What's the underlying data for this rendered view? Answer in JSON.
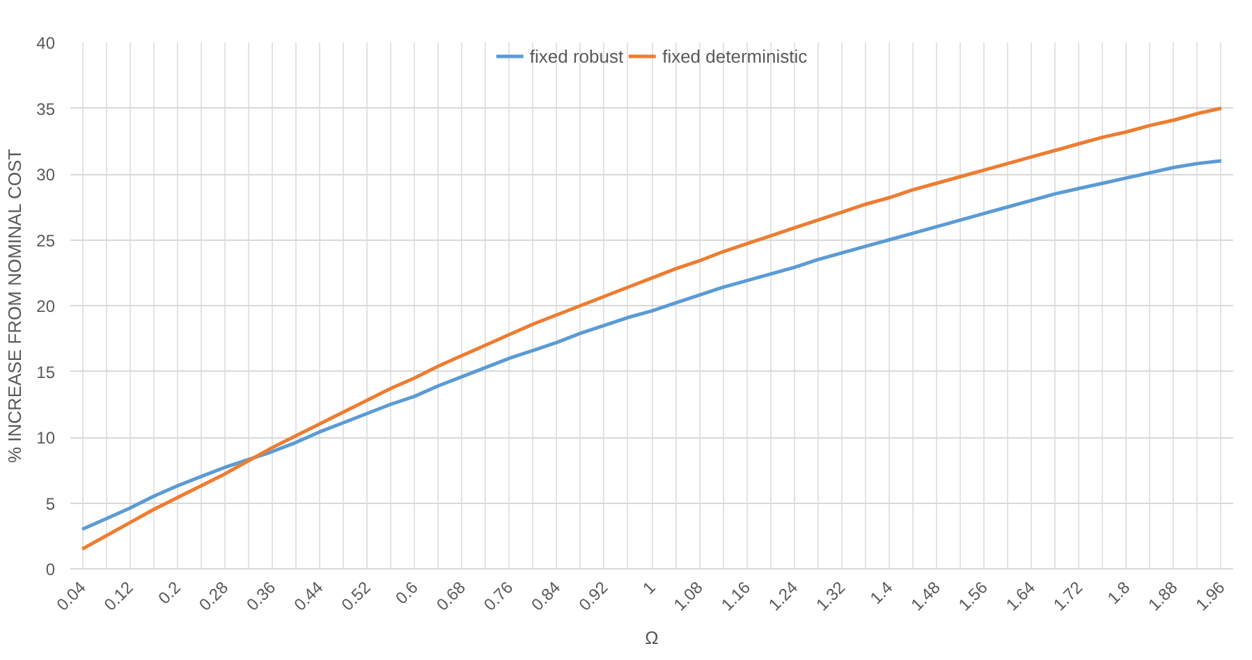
{
  "chart_data": {
    "type": "line",
    "xlabel": "Ω",
    "ylabel": "% INCREASE FROM NOMINAL COST",
    "categories": [
      "0.04",
      null,
      "0.12",
      null,
      "0.2",
      null,
      "0.28",
      null,
      "0.36",
      null,
      "0.44",
      null,
      "0.52",
      null,
      "0.6",
      null,
      "0.68",
      null,
      "0.76",
      null,
      "0.84",
      null,
      "0.92",
      null,
      "1",
      null,
      "1.08",
      null,
      "1.16",
      null,
      "1.24",
      null,
      "1.32",
      null,
      "1.4",
      null,
      "1.48",
      null,
      "1.56",
      null,
      "1.64",
      null,
      "1.72",
      null,
      "1.8",
      null,
      "1.88",
      null,
      "1.96"
    ],
    "series": [
      {
        "name": "fixed robust",
        "color": "#5b9bd5",
        "values": [
          3.0,
          3.8,
          4.6,
          5.5,
          6.3,
          7.0,
          7.7,
          8.3,
          8.9,
          9.6,
          10.4,
          11.1,
          11.8,
          12.5,
          13.1,
          13.9,
          14.6,
          15.3,
          16.0,
          16.6,
          17.2,
          17.9,
          18.5,
          19.1,
          19.6,
          20.2,
          20.8,
          21.4,
          21.9,
          22.4,
          22.9,
          23.5,
          24.0,
          24.5,
          25.0,
          25.5,
          26.0,
          26.5,
          27.0,
          27.5,
          28.0,
          28.5,
          28.9,
          29.3,
          29.7,
          30.1,
          30.5,
          30.8,
          31.0
        ]
      },
      {
        "name": "fixed deterministic",
        "color": "#ed7d31",
        "values": [
          1.5,
          2.5,
          3.5,
          4.5,
          5.4,
          6.3,
          7.2,
          8.2,
          9.2,
          10.1,
          11.0,
          11.9,
          12.8,
          13.7,
          14.5,
          15.4,
          16.2,
          17.0,
          17.8,
          18.6,
          19.3,
          20.0,
          20.7,
          21.4,
          22.1,
          22.8,
          23.4,
          24.1,
          24.7,
          25.3,
          25.9,
          26.5,
          27.1,
          27.7,
          28.2,
          28.8,
          29.3,
          29.8,
          30.3,
          30.8,
          31.3,
          31.8,
          32.3,
          32.8,
          33.2,
          33.7,
          34.1,
          34.6,
          35.0
        ]
      }
    ],
    "ylim": [
      0,
      40
    ],
    "yticks": [
      0,
      5,
      10,
      15,
      20,
      25,
      30,
      35,
      40
    ],
    "grid": true,
    "legend": "top",
    "marker": "none",
    "line_style": "solid"
  }
}
